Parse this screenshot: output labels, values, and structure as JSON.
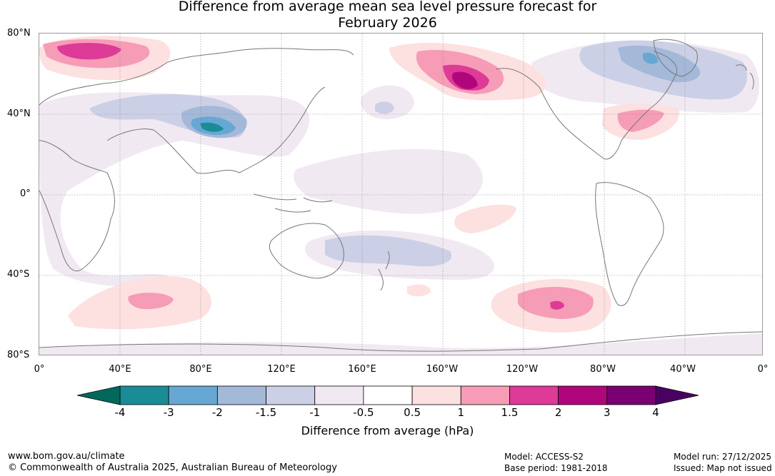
{
  "title": {
    "line1": "Difference from average mean sea level pressure forecast for",
    "line2": "February 2026"
  },
  "map": {
    "lat_labels": [
      "80°N",
      "40°N",
      "0°",
      "40°S",
      "80°S"
    ],
    "lon_labels": [
      "0°",
      "40°E",
      "80°E",
      "120°E",
      "160°E",
      "160°W",
      "120°W",
      "80°W",
      "40°W",
      "0°"
    ],
    "anomaly_regions": [
      {
        "name": "scandinavia-high",
        "level": "1.5 to 2 hPa",
        "lon": 25,
        "lat": 70
      },
      {
        "name": "gulf-of-alaska-high",
        "level": "2 to 3 hPa",
        "lon": -150,
        "lat": 58
      },
      {
        "name": "south-pacific-high",
        "level": "1.5 to 2 hPa",
        "lon": -105,
        "lat": -55
      },
      {
        "name": "southern-indian-ocean-high",
        "level": "1 to 1.5 hPa",
        "lon": 50,
        "lat": -53
      },
      {
        "name": "western-atlantic-high",
        "level": "1 to 1.5 hPa",
        "lon": -65,
        "lat": 37
      },
      {
        "name": "central-asia-low",
        "level": "-3 to -4 hPa",
        "lon": 80,
        "lat": 35
      },
      {
        "name": "greenland-low",
        "level": "-2 to -3 hPa",
        "lon": -50,
        "lat": 68
      },
      {
        "name": "australia-pacific-low",
        "level": "-1 to -1.5 hPa",
        "lon": 150,
        "lat": -30
      }
    ]
  },
  "colorbar": {
    "title": "Difference from average (hPa)",
    "ticks": [
      "-4",
      "-3",
      "-2",
      "-1.5",
      "-1",
      "-0.5",
      "0.5",
      "1",
      "1.5",
      "2",
      "3",
      "4"
    ],
    "colors": [
      "#1a8c96",
      "#66a8d3",
      "#a4b8d8",
      "#ccd0e6",
      "#f1e9f2",
      "#ffffff",
      "#fde0e0",
      "#f69cb6",
      "#de3a98",
      "#b0067c",
      "#7a0072"
    ],
    "under_color": "#00695c",
    "over_color": "#4a0062"
  },
  "footer": {
    "url": "www.bom.gov.au/climate",
    "copyright": "© Commonwealth of Australia 2025, Australian Bureau of Meteorology",
    "model": "Model: ACCESS-S2",
    "base_period": "Base period: 1981-2018",
    "model_run": "Model run: 27/12/2025",
    "issued": "Issued: Map not issued"
  }
}
